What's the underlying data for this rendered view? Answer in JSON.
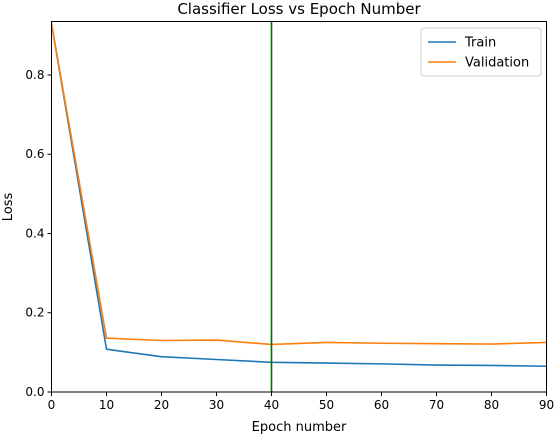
{
  "chart_data": {
    "type": "line",
    "title": "Classifier Loss vs Epoch Number",
    "xlabel": "Epoch number",
    "ylabel": "Loss",
    "xlim": [
      0,
      90
    ],
    "ylim": [
      0,
      0.935
    ],
    "x": [
      0,
      10,
      20,
      30,
      40,
      50,
      60,
      70,
      80,
      90
    ],
    "xticks": [
      0,
      10,
      20,
      30,
      40,
      50,
      60,
      70,
      80,
      90
    ],
    "yticks": [
      0.0,
      0.2,
      0.4,
      0.6,
      0.8
    ],
    "ytick_labels": [
      "0.0",
      "0.2",
      "0.4",
      "0.6",
      "0.8"
    ],
    "grid": false,
    "legend_position": "top-right",
    "series": [
      {
        "name": "Train",
        "color": "#1f77b4",
        "values": [
          0.93,
          0.108,
          0.089,
          0.082,
          0.075,
          0.073,
          0.071,
          0.068,
          0.067,
          0.065
        ]
      },
      {
        "name": "Validation",
        "color": "#ff7f0e",
        "values": [
          0.93,
          0.136,
          0.13,
          0.131,
          0.12,
          0.125,
          0.123,
          0.122,
          0.121,
          0.125
        ]
      }
    ],
    "vline": {
      "x": 40,
      "color": "#007100"
    }
  }
}
